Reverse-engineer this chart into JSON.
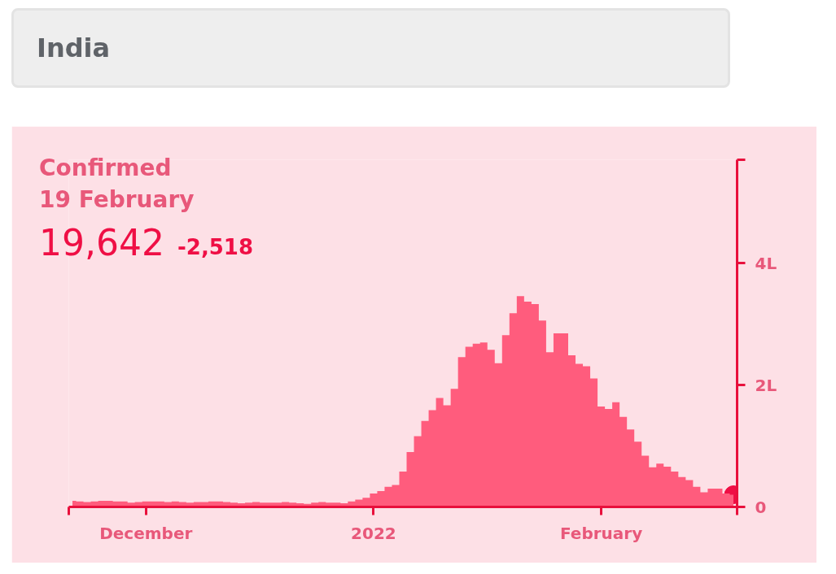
{
  "chart_data": {
    "type": "area",
    "title": "Confirmed",
    "subtitle": "19 February",
    "annotations": [
      "19,642",
      "-2,518",
      "India"
    ],
    "x": [
      "2021-11-21",
      "2021-11-22",
      "2021-11-23",
      "2021-11-24",
      "2021-11-25",
      "2021-11-26",
      "2021-11-27",
      "2021-11-28",
      "2021-11-29",
      "2021-11-30",
      "2021-12-01",
      "2021-12-02",
      "2021-12-03",
      "2021-12-04",
      "2021-12-05",
      "2021-12-06",
      "2021-12-07",
      "2021-12-08",
      "2021-12-09",
      "2021-12-10",
      "2021-12-11",
      "2021-12-12",
      "2021-12-13",
      "2021-12-14",
      "2021-12-15",
      "2021-12-16",
      "2021-12-17",
      "2021-12-18",
      "2021-12-19",
      "2021-12-20",
      "2021-12-21",
      "2021-12-22",
      "2021-12-23",
      "2021-12-24",
      "2021-12-25",
      "2021-12-26",
      "2021-12-27",
      "2021-12-28",
      "2021-12-29",
      "2021-12-30",
      "2021-12-31",
      "2022-01-01",
      "2022-01-02",
      "2022-01-03",
      "2022-01-04",
      "2022-01-05",
      "2022-01-06",
      "2022-01-07",
      "2022-01-08",
      "2022-01-09",
      "2022-01-10",
      "2022-01-11",
      "2022-01-12",
      "2022-01-13",
      "2022-01-14",
      "2022-01-15",
      "2022-01-16",
      "2022-01-17",
      "2022-01-18",
      "2022-01-19",
      "2022-01-20",
      "2022-01-21",
      "2022-01-22",
      "2022-01-23",
      "2022-01-24",
      "2022-01-25",
      "2022-01-26",
      "2022-01-27",
      "2022-01-28",
      "2022-01-29",
      "2022-01-30",
      "2022-01-31",
      "2022-02-01",
      "2022-02-02",
      "2022-02-03",
      "2022-02-04",
      "2022-02-05",
      "2022-02-06",
      "2022-02-07",
      "2022-02-08",
      "2022-02-09",
      "2022-02-10",
      "2022-02-11",
      "2022-02-12",
      "2022-02-13",
      "2022-02-14",
      "2022-02-15",
      "2022-02-16",
      "2022-02-17",
      "2022-02-18",
      "2022-02-19"
    ],
    "series": [
      {
        "color": "#ff5c7d",
        "values": [
          0.1,
          0.09,
          0.08,
          0.09,
          0.1,
          0.1,
          0.09,
          0.09,
          0.07,
          0.08,
          0.09,
          0.09,
          0.09,
          0.08,
          0.09,
          0.08,
          0.07,
          0.08,
          0.08,
          0.09,
          0.09,
          0.08,
          0.07,
          0.06,
          0.07,
          0.08,
          0.07,
          0.07,
          0.07,
          0.08,
          0.07,
          0.06,
          0.05,
          0.07,
          0.08,
          0.07,
          0.07,
          0.06,
          0.09,
          0.12,
          0.15,
          0.22,
          0.26,
          0.33,
          0.36,
          0.58,
          0.9,
          1.16,
          1.41,
          1.59,
          1.79,
          1.67,
          1.94,
          2.46,
          2.63,
          2.68,
          2.7,
          2.58,
          2.36,
          2.82,
          3.18,
          3.46,
          3.37,
          3.33,
          3.06,
          2.54,
          2.85,
          2.85,
          2.49,
          2.35,
          2.31,
          2.11,
          1.65,
          1.61,
          1.72,
          1.48,
          1.27,
          1.07,
          0.84,
          0.65,
          0.71,
          0.66,
          0.58,
          0.49,
          0.44,
          0.33,
          0.24,
          0.3,
          0.3,
          0.22,
          0.2
        ]
      },
      {
        "type": "scatter",
        "color": "#ef0f45",
        "x": [
          "2022-02-19"
        ],
        "values": [
          0.2
        ]
      }
    ],
    "xlim": [
      "2021-11-20T12:00",
      "2022-02-19T12:00"
    ],
    "xticks": [
      {
        "value": "2021-11-20T12:00",
        "label": null
      },
      {
        "value": "2021-12-01",
        "label": "December"
      },
      {
        "value": "2022-01-01",
        "label": "2022"
      },
      {
        "value": "2022-02-01",
        "label": "February"
      },
      {
        "value": "2022-02-19T12:00",
        "label": null
      }
    ],
    "ylim": [
      0,
      5.7
    ],
    "yticks": [
      0,
      {
        "value": 2,
        "label": "2L"
      },
      {
        "value": 4,
        "label": "4L"
      },
      {
        "value": 5.7,
        "label": null
      }
    ]
  }
}
